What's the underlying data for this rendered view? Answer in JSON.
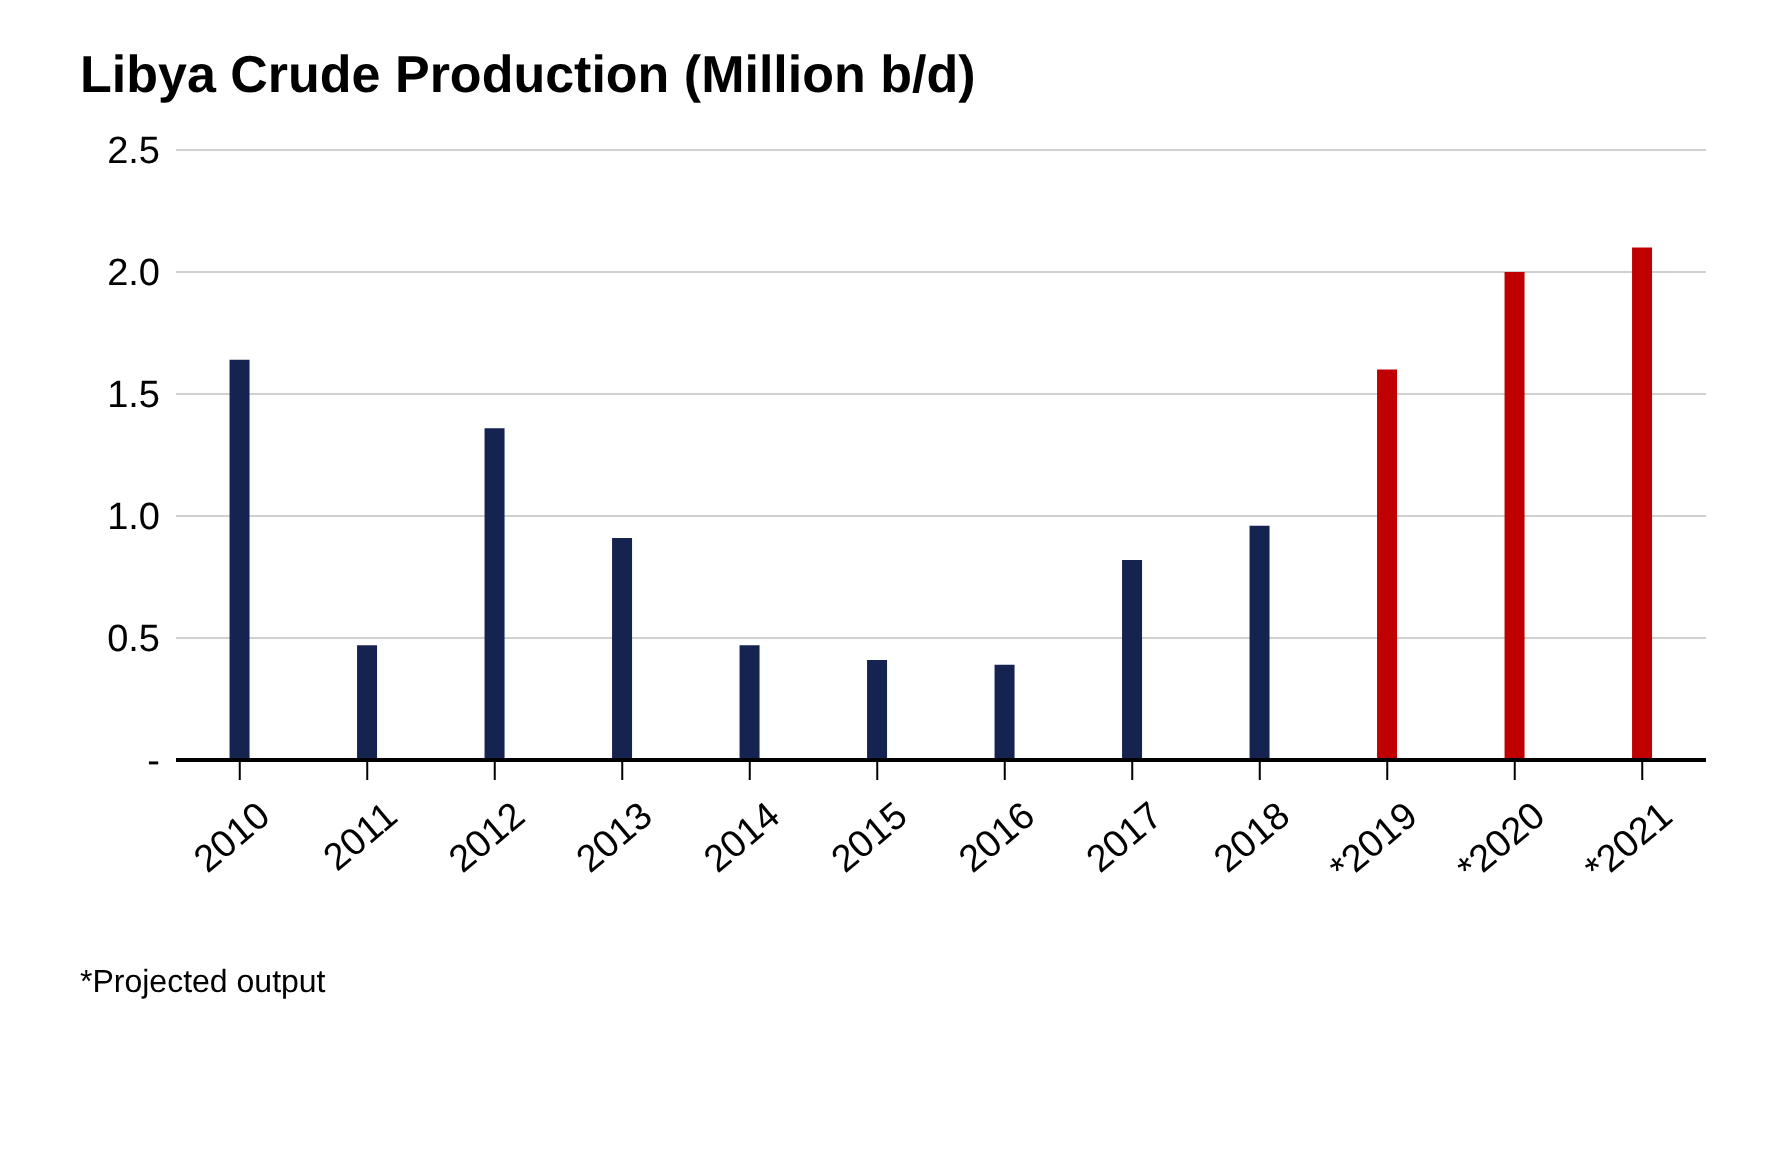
{
  "chart_data": {
    "type": "bar",
    "title": "Libya Crude Production (Million b/d)",
    "categories": [
      "2010",
      "2011",
      "2012",
      "2013",
      "2014",
      "2015",
      "2016",
      "2017",
      "2018",
      "*2019",
      "*2020",
      "*2021"
    ],
    "values": [
      1.64,
      0.47,
      1.36,
      0.91,
      0.47,
      0.41,
      0.39,
      0.82,
      0.96,
      1.6,
      2.0,
      2.1
    ],
    "colors": [
      "#14234f",
      "#14234f",
      "#14234f",
      "#14234f",
      "#14234f",
      "#14234f",
      "#14234f",
      "#14234f",
      "#14234f",
      "#c00000",
      "#c00000",
      "#c00000"
    ],
    "ylim": [
      0,
      2.5
    ],
    "yticks": [
      {
        "value": 0,
        "label": "-"
      },
      {
        "value": 0.5,
        "label": "0.5"
      },
      {
        "value": 1,
        "label": "1.0"
      },
      {
        "value": 1.5,
        "label": "1.5"
      },
      {
        "value": 2,
        "label": "2.0"
      },
      {
        "value": 2.5,
        "label": "2.5"
      }
    ],
    "grid": "y",
    "annotations": [
      "*Projected output"
    ]
  }
}
